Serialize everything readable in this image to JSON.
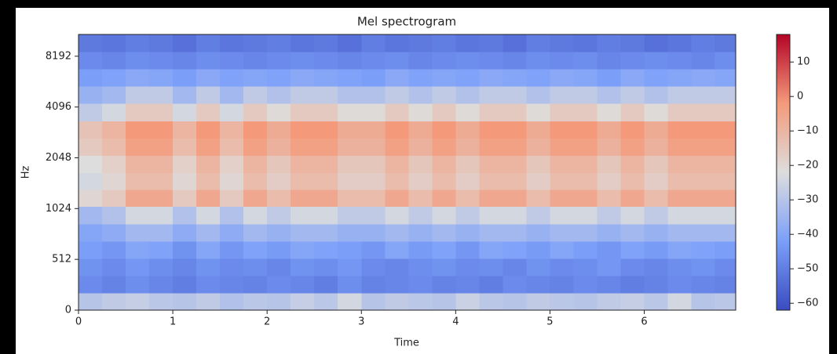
{
  "chart_data": {
    "type": "heatmap",
    "title": "Mel spectrogram",
    "xlabel": "Time",
    "ylabel": "Hz",
    "xlim": [
      0,
      6.97
    ],
    "xticks": [
      0,
      1,
      2,
      3,
      4,
      5,
      6
    ],
    "ylim": [
      0,
      11025
    ],
    "yticks": [
      0,
      512,
      1024,
      2048,
      4096,
      8192
    ],
    "yscale": "symlog",
    "ybase": 2,
    "linthresh": 1024,
    "linscale": 2,
    "colormap": "coolwarm",
    "colormap_colors": [
      "#3b4cc0",
      "#7b9ff9",
      "#dddddd",
      "#f49a7b",
      "#b40426"
    ],
    "clim": [
      -62,
      18
    ],
    "cticks": [
      {
        "value": -60,
        "label": "−60"
      },
      {
        "value": -50,
        "label": "−50"
      },
      {
        "value": -40,
        "label": "−40"
      },
      {
        "value": -30,
        "label": "−30"
      },
      {
        "value": -20,
        "label": "−20"
      },
      {
        "value": -10,
        "label": "−10"
      },
      0,
      10
    ],
    "x": [
      0.125,
      0.375,
      0.625,
      0.875,
      1.125,
      1.375,
      1.625,
      1.875,
      2.125,
      2.375,
      2.625,
      2.875,
      3.125,
      3.375,
      3.625,
      3.875,
      4.125,
      4.375,
      4.625,
      4.875,
      5.125,
      5.375,
      5.625,
      5.875,
      6.125,
      6.375,
      6.625,
      6.875
    ],
    "y": [
      87,
      261,
      435,
      609,
      783,
      957,
      1187,
      1490,
      1882,
      2383,
      3015,
      3822,
      4832,
      6117,
      7739,
      9800
    ],
    "z": [
      [
        -30,
        -28,
        -27,
        -29,
        -30,
        -28,
        -31,
        -29,
        -30,
        -27,
        -29,
        -24,
        -30,
        -28,
        -29,
        -30,
        -26,
        -29,
        -30,
        -28,
        -29,
        -30,
        -28,
        -27,
        -29,
        -24,
        -30,
        -29
      ],
      [
        -47,
        -49,
        -46,
        -48,
        -50,
        -47,
        -48,
        -49,
        -47,
        -48,
        -50,
        -46,
        -49,
        -48,
        -47,
        -49,
        -48,
        -50,
        -47,
        -48,
        -49,
        -47,
        -48,
        -50,
        -49,
        -47,
        -48,
        -49
      ],
      [
        -45,
        -47,
        -44,
        -46,
        -48,
        -45,
        -47,
        -46,
        -48,
        -45,
        -46,
        -44,
        -47,
        -48,
        -46,
        -45,
        -47,
        -46,
        -48,
        -45,
        -47,
        -46,
        -44,
        -47,
        -48,
        -46,
        -45,
        -47
      ],
      [
        -42,
        -44,
        -40,
        -41,
        -45,
        -40,
        -44,
        -41,
        -43,
        -40,
        -41,
        -42,
        -44,
        -40,
        -43,
        -41,
        -44,
        -40,
        -41,
        -43,
        -40,
        -42,
        -44,
        -41,
        -43,
        -40,
        -41,
        -42
      ],
      [
        -40,
        -38,
        -34,
        -34,
        -38,
        -34,
        -38,
        -34,
        -36,
        -34,
        -34,
        -36,
        -36,
        -34,
        -36,
        -34,
        -36,
        -34,
        -34,
        -36,
        -34,
        -34,
        -36,
        -34,
        -36,
        -34,
        -34,
        -34
      ],
      [
        -34,
        -31,
        -24,
        -24,
        -31,
        -24,
        -31,
        -24,
        -28,
        -24,
        -24,
        -28,
        -28,
        -24,
        -28,
        -24,
        -28,
        -24,
        -24,
        -28,
        -24,
        -24,
        -28,
        -24,
        -28,
        -24,
        -24,
        -24
      ],
      [
        -20,
        -16,
        -6,
        -6,
        -16,
        -6,
        -16,
        -6,
        -12,
        -6,
        -6,
        -12,
        -12,
        -6,
        -12,
        -6,
        -12,
        -6,
        -6,
        -12,
        -6,
        -6,
        -12,
        -6,
        -12,
        -6,
        -6,
        -6
      ],
      [
        -24,
        -20,
        -12,
        -12,
        -20,
        -12,
        -20,
        -12,
        -17,
        -12,
        -12,
        -17,
        -17,
        -12,
        -17,
        -12,
        -17,
        -12,
        -12,
        -17,
        -12,
        -12,
        -17,
        -12,
        -17,
        -12,
        -12,
        -12
      ],
      [
        -22,
        -18,
        -10,
        -10,
        -18,
        -10,
        -18,
        -10,
        -15,
        -10,
        -10,
        -15,
        -15,
        -10,
        -15,
        -10,
        -15,
        -10,
        -10,
        -15,
        -10,
        -10,
        -15,
        -10,
        -15,
        -10,
        -10,
        -10
      ],
      [
        -16,
        -12,
        -4,
        -4,
        -12,
        -4,
        -12,
        -4,
        -9,
        -4,
        -4,
        -9,
        -9,
        -4,
        -9,
        -4,
        -9,
        -4,
        -4,
        -9,
        -4,
        -4,
        -9,
        -4,
        -9,
        -4,
        -4,
        -4
      ],
      [
        -14,
        -10,
        -2,
        -2,
        -10,
        -2,
        -10,
        -2,
        -7,
        -2,
        -2,
        -7,
        -7,
        -2,
        -7,
        -2,
        -7,
        -2,
        -2,
        -7,
        -2,
        -2,
        -7,
        -2,
        -7,
        -2,
        -2,
        -2
      ],
      [
        -28,
        -24,
        -16,
        -16,
        -24,
        -16,
        -24,
        -16,
        -21,
        -16,
        -16,
        -21,
        -21,
        -16,
        -21,
        -16,
        -21,
        -16,
        -16,
        -21,
        -16,
        -16,
        -21,
        -16,
        -21,
        -16,
        -16,
        -16
      ],
      [
        -36,
        -34,
        -28,
        -28,
        -34,
        -28,
        -34,
        -28,
        -31,
        -28,
        -28,
        -31,
        -31,
        -28,
        -31,
        -28,
        -31,
        -28,
        -28,
        -31,
        -28,
        -28,
        -31,
        -28,
        -31,
        -28,
        -28,
        -28
      ],
      [
        -42,
        -41,
        -39,
        -40,
        -42,
        -39,
        -41,
        -40,
        -41,
        -39,
        -40,
        -41,
        -42,
        -39,
        -41,
        -40,
        -41,
        -39,
        -40,
        -41,
        -39,
        -40,
        -42,
        -39,
        -41,
        -40,
        -39,
        -40
      ],
      [
        -47,
        -48,
        -46,
        -47,
        -48,
        -46,
        -47,
        -48,
        -47,
        -46,
        -47,
        -48,
        -47,
        -46,
        -48,
        -47,
        -46,
        -47,
        -48,
        -46,
        -47,
        -46,
        -48,
        -47,
        -46,
        -47,
        -48,
        -46
      ],
      [
        -51,
        -52,
        -50,
        -51,
        -53,
        -50,
        -52,
        -51,
        -50,
        -52,
        -51,
        -53,
        -50,
        -52,
        -51,
        -50,
        -52,
        -51,
        -53,
        -50,
        -51,
        -52,
        -50,
        -51,
        -53,
        -52,
        -50,
        -51
      ]
    ]
  }
}
